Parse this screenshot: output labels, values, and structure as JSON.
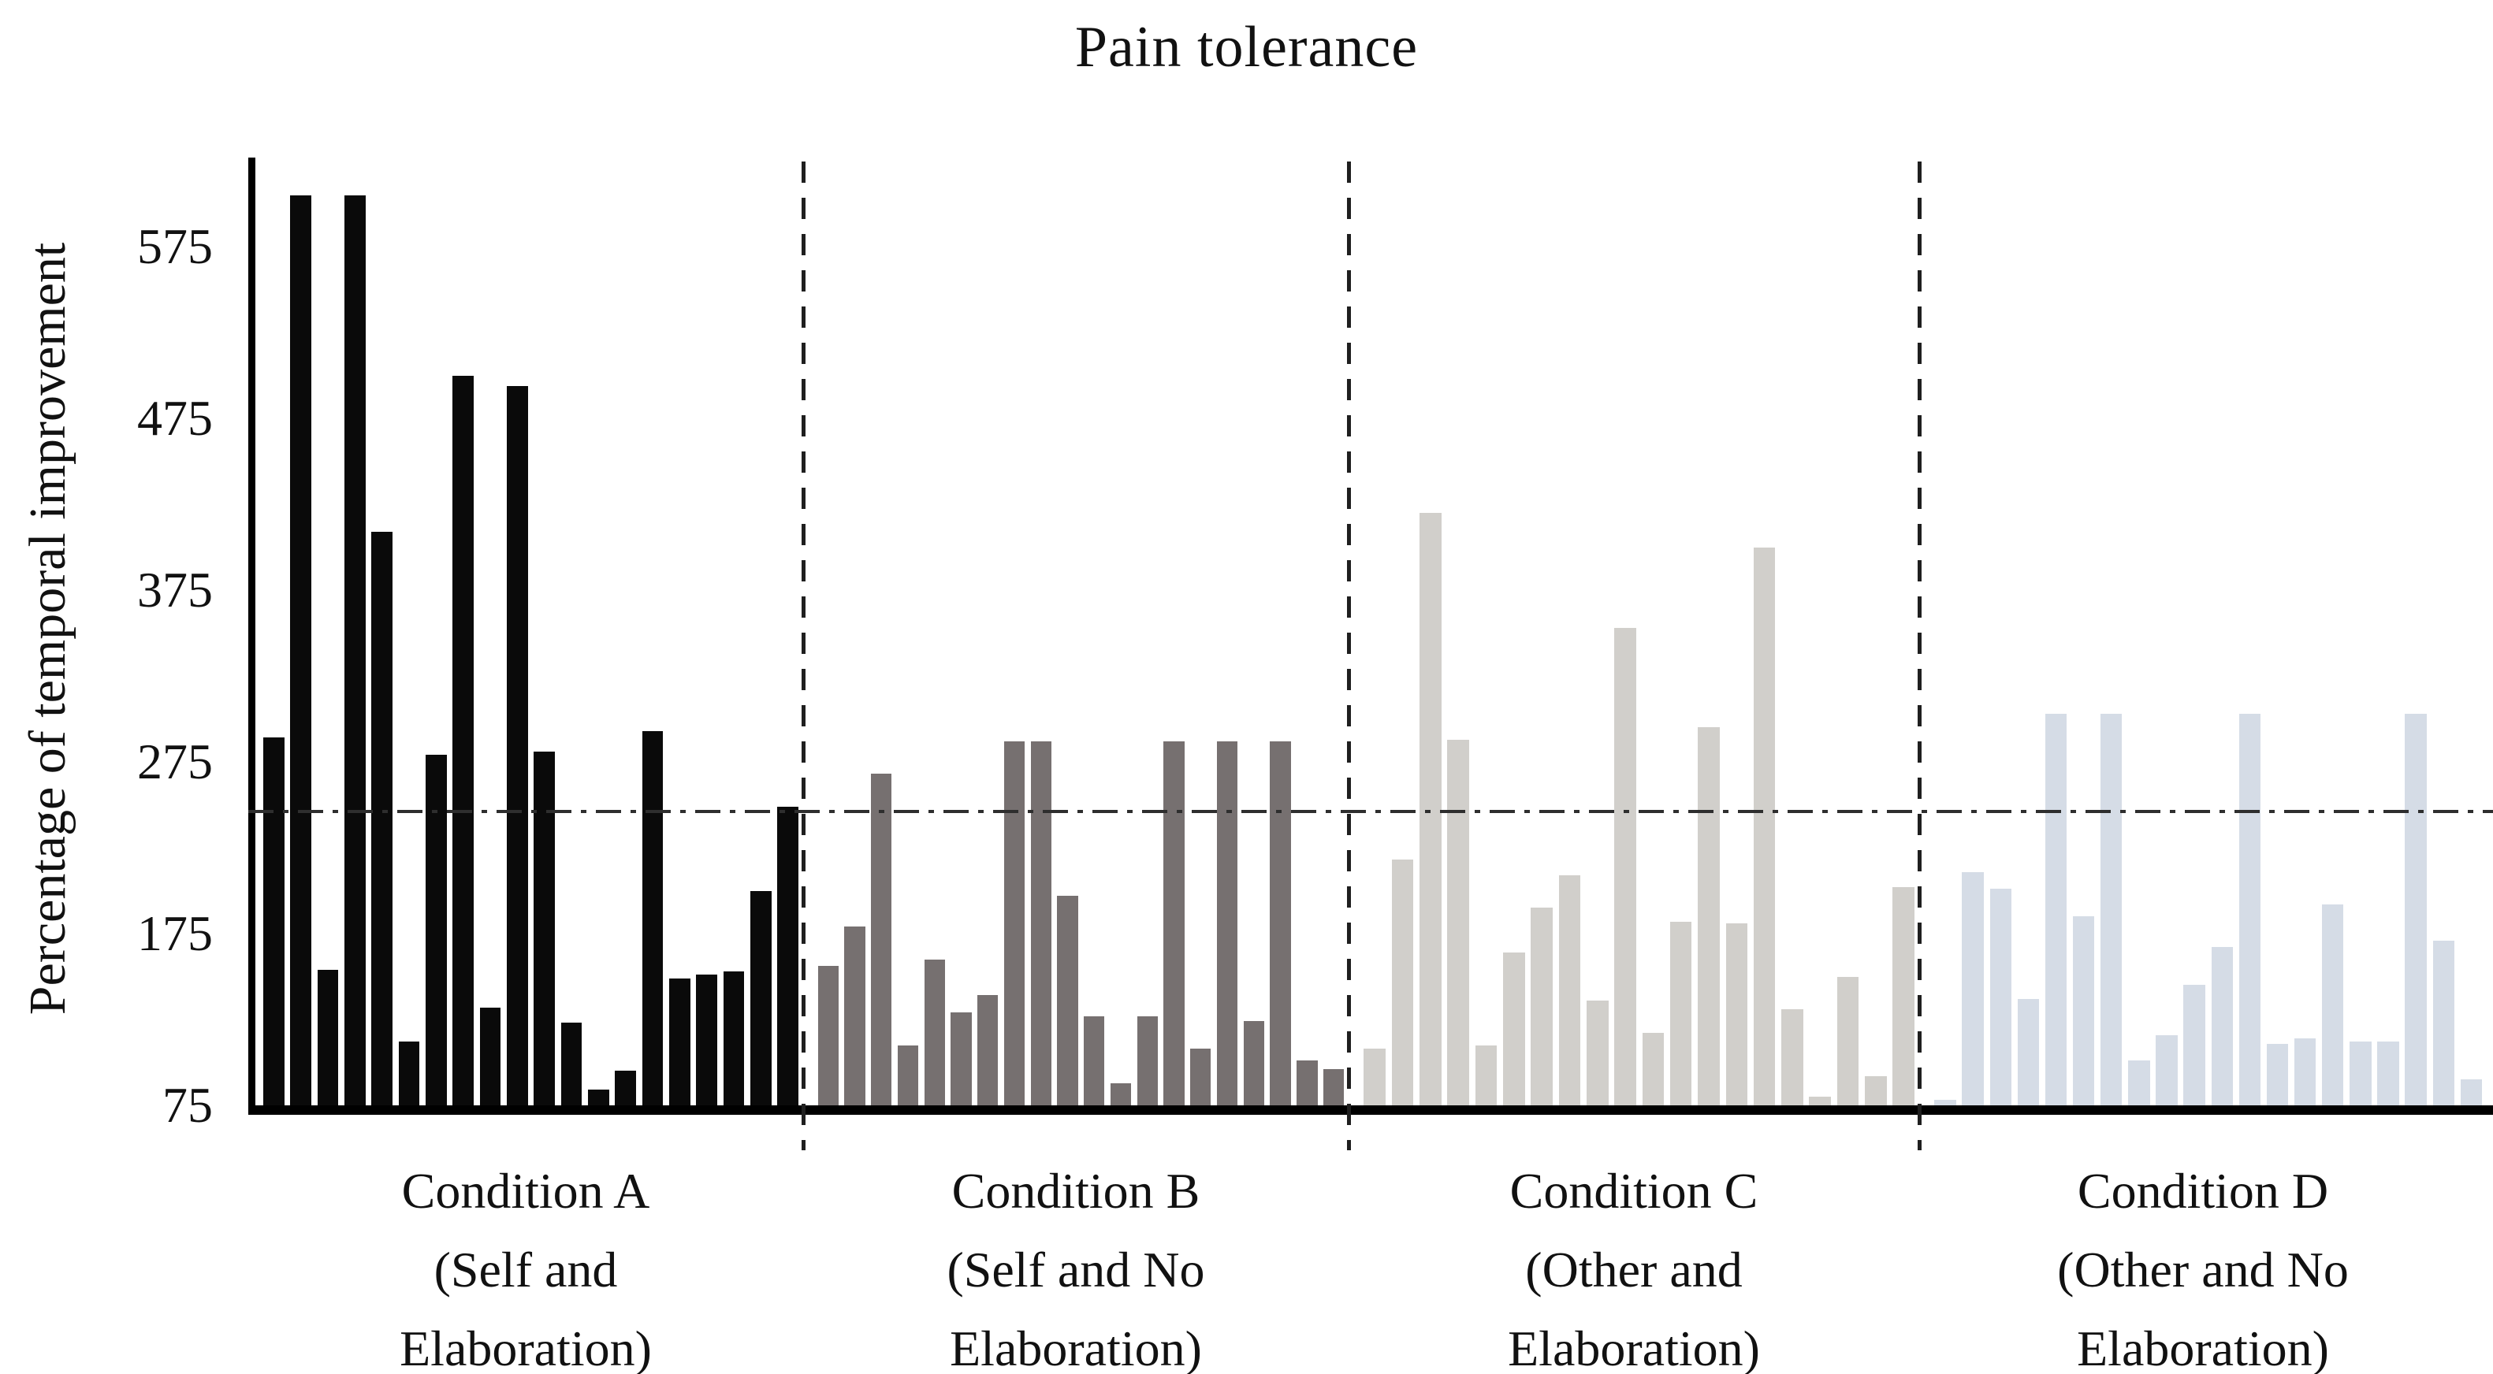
{
  "title": "Pain tolerance",
  "y_axis_label": "Percentage of temporal improvement",
  "colors": {
    "condition_a_bar": "#0a0a0a",
    "condition_b_bar": "#767070",
    "condition_c_bar": "#d1cfcb",
    "condition_d_bar": "#d5dce6",
    "axis": "#000000",
    "reference_line": "#2e2e2e",
    "separator": "#1f1f1f",
    "text": "#111111"
  },
  "chart_data": {
    "type": "bar",
    "title": "Pain tolerance",
    "xlabel": "",
    "ylabel": "Percentage of temporal improvement",
    "ylim": [
      75,
      627
    ],
    "yticks": [
      75,
      175,
      275,
      375,
      475,
      575
    ],
    "grid": false,
    "legend": "none",
    "reference_line_value": 246,
    "reference_line_style": "dash-dot horizontal mean line spanning plot",
    "group_separators": "vertical dashed lines between condition groups",
    "groups": [
      {
        "label_lines": [
          "Condition A",
          "(Self and",
          "Elaboration)"
        ],
        "color": "#0a0a0a",
        "values": [
          289,
          605,
          154,
          605,
          409,
          112,
          279,
          500,
          132,
          494,
          281,
          123,
          84,
          95,
          293,
          149,
          151,
          153,
          200,
          249
        ]
      },
      {
        "label_lines": [
          "Condition B",
          "(Self and No",
          "Elaboration)"
        ],
        "color": "#767070",
        "values": [
          156,
          179,
          268,
          110,
          160,
          129,
          139,
          287,
          287,
          197,
          127,
          88,
          127,
          287,
          108,
          287,
          124,
          287,
          101,
          96
        ]
      },
      {
        "label_lines": [
          "Condition C",
          "(Other and",
          "Elaboration)"
        ],
        "color": "#d1cfcb",
        "values": [
          108,
          218,
          420,
          288,
          110,
          164,
          190,
          209,
          136,
          353,
          117,
          182,
          295,
          181,
          400,
          131,
          80,
          150,
          92,
          202
        ]
      },
      {
        "label_lines": [
          "Condition D",
          "(Other and No",
          "Elaboration)"
        ],
        "color": "#d5dce6",
        "values": [
          78,
          211,
          201,
          137,
          303,
          185,
          303,
          101,
          116,
          145,
          167,
          303,
          111,
          114,
          192,
          112,
          112,
          303,
          171,
          90
        ]
      }
    ]
  }
}
